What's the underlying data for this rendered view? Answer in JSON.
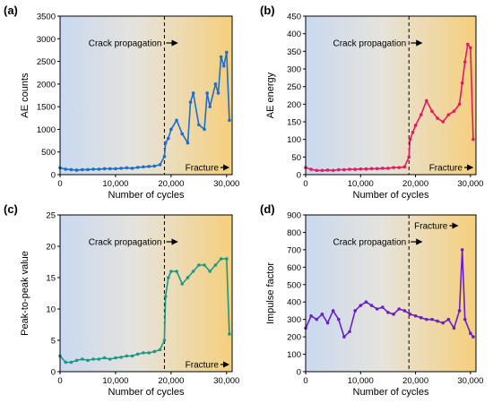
{
  "chart_data": [
    {
      "panel_label": "(a)",
      "type": "line",
      "xlabel": "Number of cycles",
      "ylabel": "AE counts",
      "xlim": [
        0,
        31000
      ],
      "ylim": [
        0,
        3500
      ],
      "xticks": [
        0,
        10000,
        20000,
        30000
      ],
      "xtick_labels": [
        "0",
        "10,000",
        "20,000",
        "30,000"
      ],
      "yticks": [
        0,
        500,
        1000,
        1500,
        2000,
        2500,
        3000,
        3500
      ],
      "ytick_labels": [
        "0",
        "500",
        "1000",
        "1500",
        "2000",
        "2500",
        "3000",
        "3500"
      ],
      "grid": false,
      "background": "blue-to-orange gradient",
      "series_color": "#1a6fc9",
      "markers": true,
      "annotations": [
        {
          "text": "Crack propagation",
          "x": 18800,
          "kind": "dashed-line-with-arrow"
        },
        {
          "text": "Fracture",
          "x": 30500,
          "kind": "arrow"
        }
      ],
      "series": [
        {
          "x": [
            0,
            1000,
            2000,
            3000,
            4000,
            5000,
            6000,
            7000,
            8000,
            9000,
            10000,
            11000,
            12000,
            13000,
            14000,
            15000,
            16000,
            17000,
            18000,
            18800,
            19000,
            19500,
            20000,
            21000,
            22000,
            23000,
            23500,
            24000,
            25000,
            26000,
            26500,
            27000,
            28000,
            28500,
            29000,
            29500,
            30000,
            30500
          ],
          "y": [
            150,
            120,
            110,
            100,
            110,
            110,
            120,
            120,
            130,
            130,
            130,
            140,
            150,
            140,
            160,
            170,
            180,
            190,
            220,
            400,
            700,
            800,
            1000,
            1200,
            900,
            700,
            1600,
            1800,
            1100,
            1000,
            1800,
            1500,
            2000,
            1800,
            2600,
            2400,
            2700,
            1200
          ]
        }
      ]
    },
    {
      "panel_label": "(b)",
      "type": "line",
      "xlabel": "Number of cycles",
      "ylabel": "AE energy",
      "xlim": [
        0,
        31000
      ],
      "ylim": [
        0,
        450
      ],
      "xticks": [
        0,
        10000,
        20000,
        30000
      ],
      "xtick_labels": [
        "0",
        "10,000",
        "20,000",
        "30,000"
      ],
      "yticks": [
        0,
        50,
        100,
        150,
        200,
        250,
        300,
        350,
        400,
        450
      ],
      "ytick_labels": [
        "0",
        "50",
        "100",
        "150",
        "200",
        "250",
        "300",
        "350",
        "400",
        "450"
      ],
      "grid": false,
      "background": "blue-to-orange gradient",
      "series_color": "#e8185f",
      "markers": true,
      "annotations": [
        {
          "text": "Crack propagation",
          "x": 18800,
          "kind": "dashed-line-with-arrow"
        },
        {
          "text": "Fracture",
          "x": 30500,
          "kind": "arrow"
        }
      ],
      "series": [
        {
          "x": [
            0,
            1000,
            2000,
            3000,
            4000,
            5000,
            6000,
            7000,
            8000,
            9000,
            10000,
            11000,
            12000,
            13000,
            14000,
            15000,
            16000,
            17000,
            18000,
            18800,
            19000,
            19500,
            20000,
            21000,
            22000,
            23000,
            24000,
            25000,
            26000,
            27000,
            28000,
            28500,
            29000,
            29500,
            30000,
            30500
          ],
          "y": [
            20,
            15,
            12,
            12,
            13,
            12,
            14,
            14,
            15,
            15,
            16,
            16,
            17,
            17,
            18,
            18,
            20,
            20,
            22,
            50,
            100,
            120,
            140,
            170,
            210,
            180,
            160,
            150,
            170,
            180,
            200,
            260,
            320,
            370,
            360,
            100
          ]
        }
      ]
    },
    {
      "panel_label": "(c)",
      "type": "line",
      "xlabel": "Number of cycles",
      "ylabel": "Peak-to-peak value",
      "xlim": [
        0,
        31000
      ],
      "ylim": [
        0,
        25
      ],
      "xticks": [
        0,
        10000,
        20000,
        30000
      ],
      "xtick_labels": [
        "0",
        "10,000",
        "20,000",
        "30,000"
      ],
      "yticks": [
        0,
        5,
        10,
        15,
        20,
        25
      ],
      "ytick_labels": [
        "0",
        "5",
        "10",
        "15",
        "20",
        "25"
      ],
      "grid": false,
      "background": "blue-to-orange gradient",
      "series_color": "#1a9a86",
      "markers": true,
      "annotations": [
        {
          "text": "Crack propagation",
          "x": 18800,
          "kind": "dashed-line-with-arrow"
        },
        {
          "text": "Fracture",
          "x": 30500,
          "kind": "arrow"
        }
      ],
      "series": [
        {
          "x": [
            0,
            1000,
            2000,
            3000,
            4000,
            5000,
            6000,
            7000,
            8000,
            9000,
            10000,
            11000,
            12000,
            13000,
            14000,
            15000,
            16000,
            17000,
            18000,
            18800,
            19000,
            19500,
            20000,
            21000,
            22000,
            23000,
            24000,
            25000,
            26000,
            27000,
            28000,
            29000,
            30000,
            30500
          ],
          "y": [
            2.5,
            1.5,
            1.5,
            1.8,
            2.0,
            1.8,
            2.0,
            2.0,
            2.2,
            2.0,
            2.2,
            2.3,
            2.5,
            2.5,
            2.8,
            3.0,
            3.0,
            3.2,
            3.5,
            5,
            12,
            15,
            16,
            16,
            14,
            15,
            16,
            17,
            17,
            16,
            17,
            18,
            18,
            6
          ]
        }
      ]
    },
    {
      "panel_label": "(d)",
      "type": "line",
      "xlabel": "Number of cycles",
      "ylabel": "Impulse factor",
      "xlim": [
        0,
        31000
      ],
      "ylim": [
        0,
        900
      ],
      "xticks": [
        0,
        10000,
        20000,
        30000
      ],
      "xtick_labels": [
        "0",
        "10,000",
        "20,000",
        "30,000"
      ],
      "yticks": [
        0,
        100,
        200,
        300,
        400,
        500,
        600,
        700,
        800,
        900
      ],
      "ytick_labels": [
        "0",
        "100",
        "200",
        "300",
        "400",
        "500",
        "600",
        "700",
        "800",
        "900"
      ],
      "grid": false,
      "background": "blue-to-orange gradient",
      "series_color": "#6a1fc9",
      "markers": true,
      "annotations": [
        {
          "text": "Crack propagation",
          "x": 18800,
          "kind": "dashed-line-with-arrow"
        },
        {
          "text": "Fracture",
          "x": 27800,
          "kind": "arrow"
        }
      ],
      "series": [
        {
          "x": [
            0,
            1000,
            2000,
            3000,
            4000,
            5000,
            6000,
            7000,
            8000,
            9000,
            10000,
            11000,
            12000,
            13000,
            14000,
            15000,
            16000,
            17000,
            18000,
            19000,
            20000,
            21000,
            22000,
            23000,
            24000,
            25000,
            26000,
            27000,
            28000,
            28500,
            29000,
            30000,
            30500
          ],
          "y": [
            250,
            320,
            300,
            330,
            280,
            350,
            300,
            200,
            230,
            350,
            380,
            400,
            380,
            360,
            370,
            340,
            330,
            360,
            350,
            330,
            320,
            310,
            300,
            300,
            290,
            280,
            300,
            250,
            350,
            700,
            300,
            220,
            200
          ]
        }
      ]
    }
  ]
}
